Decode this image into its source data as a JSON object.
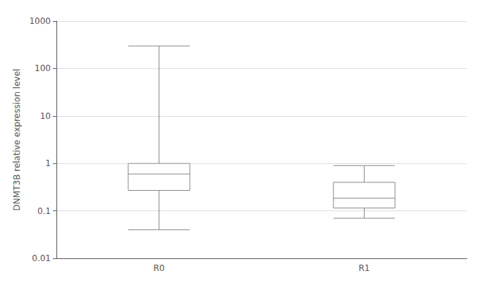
{
  "chart_data": {
    "type": "boxplot",
    "ylabel": "DNMT3B relative expression level",
    "categories": [
      "R0",
      "R1"
    ],
    "values": [
      {
        "whislo": 0.04,
        "q1": 0.27,
        "med": 0.6,
        "q3": 1.0,
        "whishi": 300
      },
      {
        "whislo": 0.07,
        "q1": 0.115,
        "med": 0.185,
        "q3": 0.4,
        "whishi": 0.9
      }
    ],
    "ylim": [
      0.01,
      1000
    ],
    "yticks": [
      0.01,
      0.1,
      1,
      10,
      100,
      1000
    ],
    "log": "y",
    "grid": true,
    "color": "#888888"
  }
}
